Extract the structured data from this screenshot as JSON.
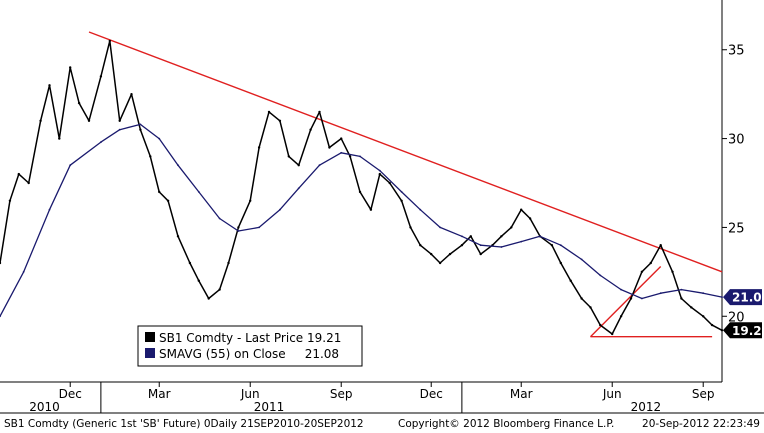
{
  "chart_data": {
    "type": "line",
    "title": "",
    "xlabel": "",
    "ylabel": "",
    "ylim": [
      16.3,
      37.8
    ],
    "yticks": [
      20,
      25,
      30,
      35
    ],
    "x_range": [
      "2010-09-21",
      "2012-09-20"
    ],
    "xtick_labels": [
      {
        "label": "Dec",
        "date": "2010-12-01"
      },
      {
        "label": "Mar",
        "date": "2011-03-01"
      },
      {
        "label": "Jun",
        "date": "2011-06-01"
      },
      {
        "label": "Sep",
        "date": "2011-09-01"
      },
      {
        "label": "Dec",
        "date": "2011-12-01"
      },
      {
        "label": "Mar",
        "date": "2012-03-01"
      },
      {
        "label": "Jun",
        "date": "2012-06-01"
      },
      {
        "label": "Sep",
        "date": "2012-09-01"
      }
    ],
    "year_labels": [
      {
        "label": "2010",
        "date": "2010-11-05"
      },
      {
        "label": "2011",
        "date": "2011-06-20"
      },
      {
        "label": "2012",
        "date": "2012-07-05"
      }
    ],
    "year_separators": [
      "2011-01-01",
      "2012-01-01"
    ],
    "series": [
      {
        "name": "SB1 Comdty - Last Price",
        "value_label": "19.21",
        "color": "#000000",
        "x": [
          "2010-09-21",
          "2010-10-01",
          "2010-10-10",
          "2010-10-20",
          "2010-11-01",
          "2010-11-10",
          "2010-11-20",
          "2010-12-01",
          "2010-12-10",
          "2010-12-20",
          "2011-01-01",
          "2011-01-10",
          "2011-01-20",
          "2011-02-01",
          "2011-02-10",
          "2011-02-20",
          "2011-03-01",
          "2011-03-10",
          "2011-03-20",
          "2011-04-01",
          "2011-04-10",
          "2011-04-20",
          "2011-05-01",
          "2011-05-10",
          "2011-05-20",
          "2011-06-01",
          "2011-06-10",
          "2011-06-20",
          "2011-07-01",
          "2011-07-10",
          "2011-07-20",
          "2011-08-01",
          "2011-08-10",
          "2011-08-20",
          "2011-09-01",
          "2011-09-10",
          "2011-09-20",
          "2011-10-01",
          "2011-10-10",
          "2011-10-20",
          "2011-11-01",
          "2011-11-10",
          "2011-11-20",
          "2011-12-01",
          "2011-12-10",
          "2011-12-20",
          "2012-01-01",
          "2012-01-10",
          "2012-01-20",
          "2012-02-01",
          "2012-02-10",
          "2012-02-20",
          "2012-03-01",
          "2012-03-10",
          "2012-03-20",
          "2012-04-01",
          "2012-04-10",
          "2012-04-20",
          "2012-05-01",
          "2012-05-10",
          "2012-05-20",
          "2012-06-01",
          "2012-06-10",
          "2012-06-20",
          "2012-07-01",
          "2012-07-10",
          "2012-07-20",
          "2012-08-01",
          "2012-08-10",
          "2012-08-20",
          "2012-09-01",
          "2012-09-10",
          "2012-09-20"
        ],
        "values": [
          23.0,
          26.5,
          28.0,
          27.5,
          31.0,
          33.0,
          30.0,
          34.0,
          32.0,
          31.0,
          33.5,
          35.5,
          31.0,
          32.5,
          30.5,
          29.0,
          27.0,
          26.5,
          24.5,
          23.0,
          22.0,
          21.0,
          21.5,
          23.0,
          25.0,
          26.5,
          29.5,
          31.5,
          31.0,
          29.0,
          28.5,
          30.5,
          31.5,
          29.5,
          30.0,
          29.0,
          27.0,
          26.0,
          28.0,
          27.5,
          26.5,
          25.0,
          24.0,
          23.5,
          23.0,
          23.5,
          24.0,
          24.5,
          23.5,
          24.0,
          24.5,
          25.0,
          26.0,
          25.5,
          24.5,
          24.0,
          23.0,
          22.0,
          21.0,
          20.5,
          19.5,
          19.0,
          20.0,
          21.0,
          22.5,
          23.0,
          24.0,
          22.5,
          21.0,
          20.5,
          20.0,
          19.5,
          19.21
        ]
      },
      {
        "name": "SMAVG (55) on Close",
        "value_label": "21.08",
        "color": "#1a1a6e",
        "x": [
          "2010-09-21",
          "2010-10-15",
          "2010-11-10",
          "2010-12-01",
          "2011-01-01",
          "2011-01-20",
          "2011-02-10",
          "2011-03-01",
          "2011-03-20",
          "2011-04-10",
          "2011-05-01",
          "2011-05-20",
          "2011-06-10",
          "2011-07-01",
          "2011-07-20",
          "2011-08-10",
          "2011-09-01",
          "2011-09-20",
          "2011-10-10",
          "2011-11-01",
          "2011-11-20",
          "2011-12-10",
          "2012-01-01",
          "2012-01-20",
          "2012-02-10",
          "2012-03-01",
          "2012-03-20",
          "2012-04-10",
          "2012-05-01",
          "2012-05-20",
          "2012-06-10",
          "2012-07-01",
          "2012-07-20",
          "2012-08-10",
          "2012-09-01",
          "2012-09-20"
        ],
        "values": [
          20.0,
          22.5,
          26.0,
          28.5,
          29.8,
          30.5,
          30.8,
          30.0,
          28.5,
          27.0,
          25.5,
          24.8,
          25.0,
          26.0,
          27.2,
          28.5,
          29.2,
          29.0,
          28.2,
          27.0,
          26.0,
          25.0,
          24.5,
          24.0,
          23.9,
          24.2,
          24.5,
          24.0,
          23.2,
          22.3,
          21.5,
          21.0,
          21.3,
          21.5,
          21.3,
          21.08
        ]
      }
    ],
    "annotations": {
      "resistance_line": {
        "from": {
          "x": "2010-12-20",
          "y": 36.0
        },
        "to": {
          "x": "2012-09-20",
          "y": 22.5
        }
      },
      "support_line": {
        "from": {
          "x": "2012-05-10",
          "y": 18.85
        },
        "to": {
          "x": "2012-09-10",
          "y": 18.85
        }
      },
      "wedge_line": {
        "from": {
          "x": "2012-05-10",
          "y": 18.85
        },
        "to": {
          "x": "2012-07-20",
          "y": 22.8
        }
      }
    },
    "legend": {
      "position": "bottom-left",
      "entries": [
        "SB1 Comdty - Last Price 19.21",
        "SMAVG (55) on Close     21.08"
      ]
    },
    "grid": false,
    "colors": {
      "price": "#000000",
      "sma": "#1a1a6e",
      "trendline": "#e02020",
      "badge_price": "#000000",
      "badge_sma": "#1a1a6e"
    }
  },
  "footer": {
    "left": "SB1 Comdty (Generic 1st 'SB' Future) 0Daily 21SEP2010-20SEP2012",
    "center": "Copyright© 2012 Bloomberg Finance L.P.",
    "right": "20-Sep-2012 22:23:49"
  }
}
